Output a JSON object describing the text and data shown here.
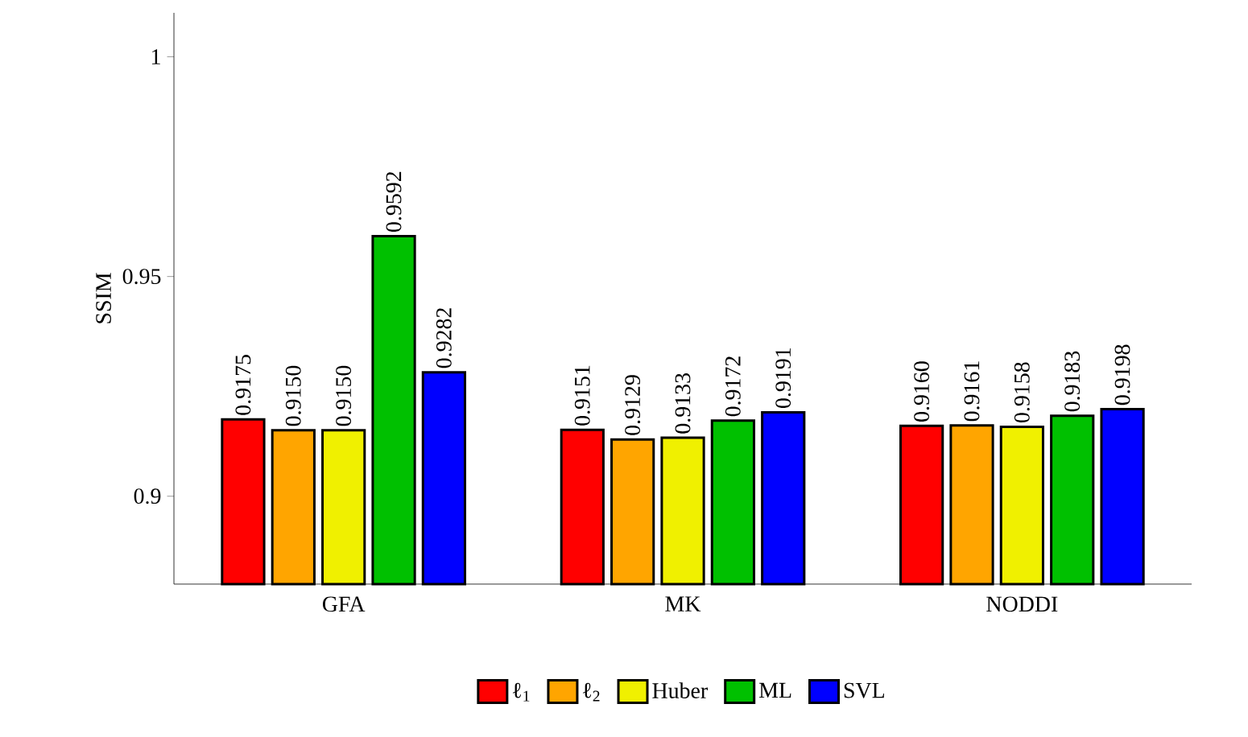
{
  "chart_data": {
    "type": "bar",
    "ylabel": "SSIM",
    "categories": [
      "GFA",
      "MK",
      "NODDI"
    ],
    "series": [
      {
        "name": "ℓ$_{1}$",
        "color": "#ff0000",
        "values": [
          0.9175,
          0.9151,
          0.916
        ],
        "value_labels": [
          "0.9175",
          "0.9151",
          "0.9160"
        ]
      },
      {
        "name": "ℓ$_{2}$",
        "color": "#ffa500",
        "values": [
          0.915,
          0.9129,
          0.9161
        ],
        "value_labels": [
          "0.9150",
          "0.9129",
          "0.9161"
        ]
      },
      {
        "name": "Huber",
        "color": "#f0f000",
        "values": [
          0.915,
          0.9133,
          0.9158
        ],
        "value_labels": [
          "0.9150",
          "0.9133",
          "0.9158"
        ]
      },
      {
        "name": "ML",
        "color": "#00c000",
        "values": [
          0.9592,
          0.9172,
          0.9183
        ],
        "value_labels": [
          "0.9592",
          "0.9172",
          "0.9183"
        ]
      },
      {
        "name": "SVL",
        "color": "#0000ff",
        "values": [
          0.9282,
          0.9191,
          0.9198
        ],
        "value_labels": [
          "0.9282",
          "0.9191",
          "0.9198"
        ]
      }
    ],
    "ylim": [
      0.88,
      1.01
    ],
    "yticks": [
      0.9,
      0.95,
      1
    ],
    "grid": false,
    "legend": "bottom"
  }
}
